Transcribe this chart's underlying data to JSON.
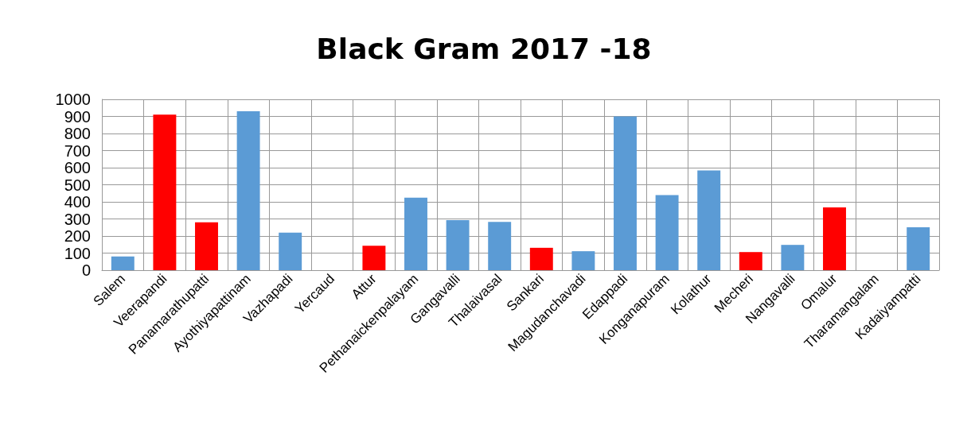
{
  "chart_data": {
    "type": "bar",
    "title": "Black Gram 2017 -18",
    "categories": [
      "Salem",
      "Veerapandi",
      "Panamarathupatti",
      "Ayothiyapattinam",
      "Vazhapadi",
      "Yercaud",
      "Attur",
      "Pethanaickenpalayam",
      "Gangavalli",
      "Thalaivasal",
      "Sankari",
      "Magudanchavadi",
      "Edappadi",
      "Konganapuram",
      "Kolathur",
      "Mecheri",
      "Nangavalli",
      "Omalur",
      "Tharamangalam",
      "Kadaiyampatti"
    ],
    "values": [
      80,
      910,
      280,
      930,
      220,
      0,
      143,
      424,
      293,
      283,
      131,
      111,
      900,
      439,
      584,
      106,
      148,
      367,
      0,
      251
    ],
    "colors": [
      "#5b9bd5",
      "#ff0000",
      "#ff0000",
      "#5b9bd5",
      "#5b9bd5",
      "#5b9bd5",
      "#ff0000",
      "#5b9bd5",
      "#5b9bd5",
      "#5b9bd5",
      "#ff0000",
      "#5b9bd5",
      "#5b9bd5",
      "#5b9bd5",
      "#5b9bd5",
      "#ff0000",
      "#5b9bd5",
      "#ff0000",
      "#5b9bd5",
      "#5b9bd5"
    ],
    "ylim": [
      0,
      1000
    ],
    "yticks": [
      0,
      100,
      200,
      300,
      400,
      500,
      600,
      700,
      800,
      900,
      1000
    ],
    "grid": true
  }
}
